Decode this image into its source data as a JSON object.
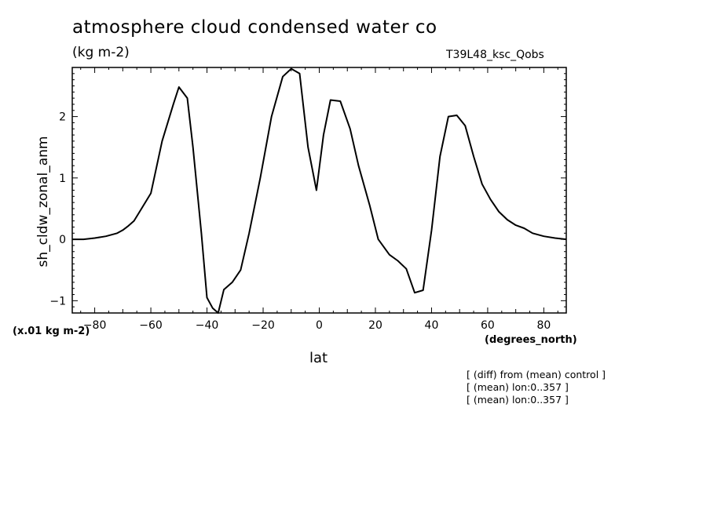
{
  "header": {
    "title": "atmosphere cloud condensed water co",
    "units": "(kg m-2)",
    "run": "T39L48_ksc_Qobs"
  },
  "footer": {
    "scale": "(x.01 kg m-2)",
    "x_units": "(degrees_north)",
    "notes": [
      "[ (diff) from (mean) control ]",
      "[ (mean) lon:0..357 ]",
      "[ (mean) lon:0..357 ]"
    ]
  },
  "chart_data": {
    "type": "line",
    "title": "atmosphere cloud condensed water co",
    "xlabel": "lat",
    "ylabel": "sh_cldw_zonal_anm",
    "xlim": [
      -88,
      88
    ],
    "ylim": [
      -1.2,
      2.8
    ],
    "xticks": [
      -80,
      -60,
      -40,
      -20,
      0,
      20,
      40,
      60,
      80
    ],
    "yticks": [
      -1,
      0,
      1,
      2
    ],
    "series": [
      {
        "x": [
          -88,
          -84,
          -80,
          -76,
          -72,
          -70,
          -68,
          -66,
          -64,
          -60,
          -56,
          -52,
          -50,
          -47,
          -45,
          -42,
          -40,
          -38,
          -36,
          -34,
          -31,
          -28,
          -25,
          -21,
          -17,
          -13,
          -10,
          -7,
          -4,
          -1,
          1.5,
          4,
          7.5,
          11,
          14,
          18,
          21,
          25,
          28,
          31,
          34,
          37,
          40,
          43,
          46,
          49,
          52,
          55,
          58,
          61,
          64,
          67,
          70,
          73,
          76,
          80,
          84,
          88
        ],
        "y": [
          0.0,
          0.0,
          0.02,
          0.05,
          0.1,
          0.15,
          0.22,
          0.3,
          0.45,
          0.75,
          1.6,
          2.2,
          2.48,
          2.3,
          1.5,
          0.1,
          -0.95,
          -1.12,
          -1.2,
          -0.82,
          -0.7,
          -0.5,
          0.1,
          1.0,
          2.0,
          2.65,
          2.78,
          2.7,
          1.5,
          0.8,
          1.7,
          2.27,
          2.25,
          1.8,
          1.2,
          0.55,
          0.0,
          -0.25,
          -0.35,
          -0.48,
          -0.87,
          -0.83,
          0.15,
          1.35,
          2.0,
          2.02,
          1.85,
          1.35,
          0.9,
          0.65,
          0.45,
          0.32,
          0.23,
          0.18,
          0.1,
          0.05,
          0.02,
          0.0
        ]
      }
    ]
  }
}
